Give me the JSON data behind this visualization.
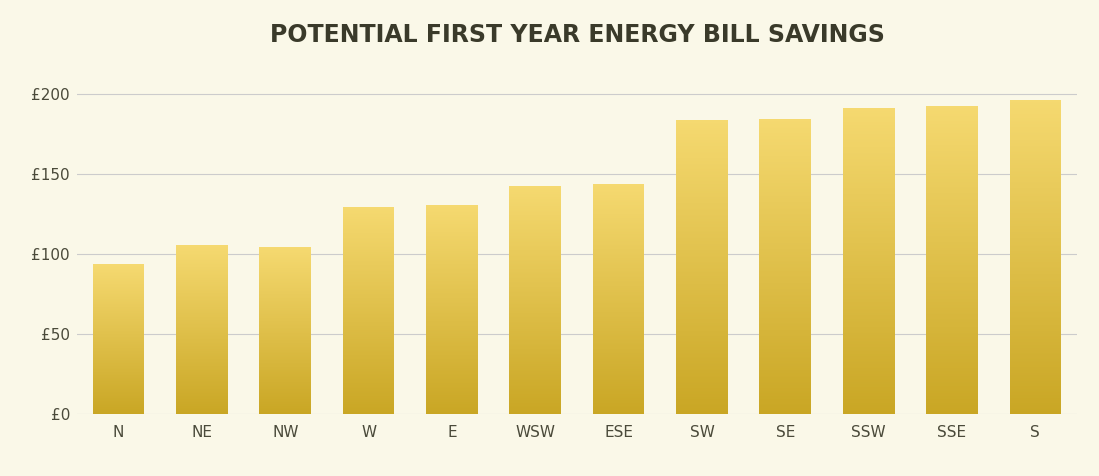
{
  "title": "POTENTIAL FIRST YEAR ENERGY BILL SAVINGS",
  "categories": [
    "N",
    "NE",
    "NW",
    "W",
    "E",
    "WSW",
    "ESE",
    "SW",
    "SE",
    "SSW",
    "SSE",
    "S"
  ],
  "values": [
    93,
    105,
    104,
    129,
    130,
    142,
    143,
    183,
    184,
    191,
    192,
    196
  ],
  "ylim": [
    0,
    220
  ],
  "yticks": [
    0,
    50,
    100,
    150,
    200
  ],
  "ytick_labels": [
    "£0",
    "£50",
    "£100",
    "£150",
    "£200"
  ],
  "background_color": "#faf8e8",
  "bar_color_top": "#f5d970",
  "bar_color_bottom": "#c9a624",
  "title_color": "#3a3a2a",
  "tick_color": "#4a4a3a",
  "grid_color": "#cccccc",
  "title_fontsize": 17,
  "tick_fontsize": 11,
  "bar_width": 0.62,
  "grad_steps": 200
}
